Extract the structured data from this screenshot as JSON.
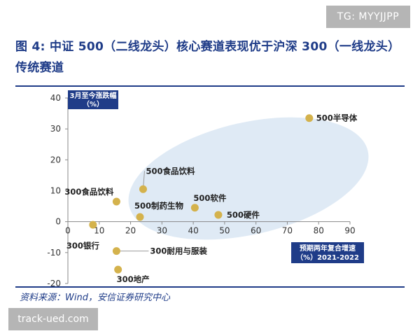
{
  "watermark_top": "TG: MYYJJPP",
  "watermark_bottom": "track-ued.com",
  "title": "图 4: 中证 500（二线龙头）核心赛道表现优于沪深 300（一线龙头）传统赛道",
  "source": "资料来源：Wind，安信证券研究中心",
  "colors": {
    "brand": "#1f3c88",
    "point": "#d4b24c",
    "ellipse_fill": "#c9dcee",
    "axis": "#888888"
  },
  "chart_data": {
    "type": "scatter",
    "ylabel_lines": [
      "3月至今涨跌幅",
      "（%）"
    ],
    "xlabel_lines": [
      "预期两年复合增速",
      "（%）2021-2022"
    ],
    "xlim": [
      0,
      90
    ],
    "ylim": [
      -20,
      40
    ],
    "x_ticks": [
      0,
      10,
      20,
      30,
      40,
      50,
      60,
      70,
      80,
      90
    ],
    "y_ticks": [
      -20,
      -10,
      0,
      10,
      20,
      30,
      40
    ],
    "points": [
      {
        "label": "500半导体",
        "x": 77,
        "y": 33.5
      },
      {
        "label": "500食品饮料",
        "x": 24,
        "y": 10.5
      },
      {
        "label": "300食品饮料",
        "x": 15.5,
        "y": 6.5
      },
      {
        "label": "500软件",
        "x": 40.5,
        "y": 4.5
      },
      {
        "label": "500制药生物",
        "x": 23,
        "y": 1.5
      },
      {
        "label": "500硬件",
        "x": 48,
        "y": 2.2
      },
      {
        "label": "300银行",
        "x": 8,
        "y": -1
      },
      {
        "label": "300耐用与服装",
        "x": 15.5,
        "y": -9.5
      },
      {
        "label": "300地产",
        "x": 16,
        "y": -15.5
      }
    ]
  }
}
